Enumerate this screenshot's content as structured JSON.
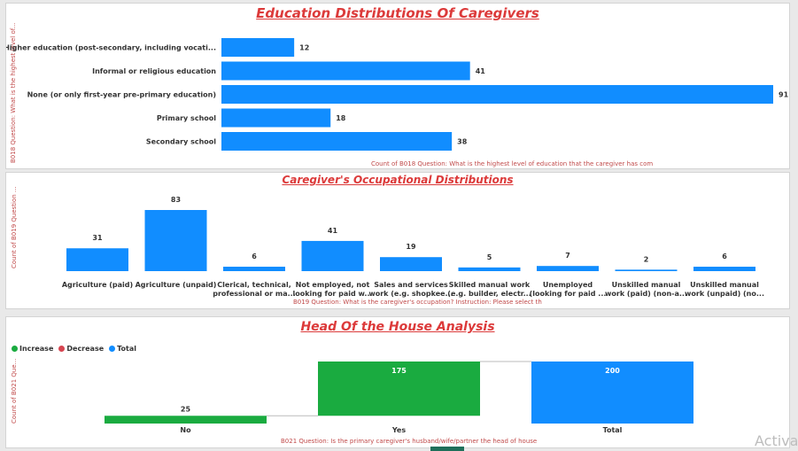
{
  "colors": {
    "bar": "#118dff",
    "increase": "#1aab40",
    "decrease": "#d64550",
    "total": "#118dff",
    "title": "#dc3a3a",
    "axis_title": "#c14b4b"
  },
  "watermark": "Activa",
  "chart_data": [
    {
      "type": "bar",
      "orientation": "horizontal",
      "title": "Education Distributions Of Caregivers",
      "ylabel": "B018 Question: What is the highest level of...",
      "xlabel": "Count of B018 Question: What is the highest level of education that the caregiver has com",
      "categories": [
        "Higher education (post-secondary, including vocati...",
        "Informal or religious education",
        "None (or only first-year pre-primary education)",
        "Primary school",
        "Secondary school"
      ],
      "values": [
        12,
        41,
        91,
        18,
        38
      ],
      "xlim": [
        0,
        91
      ],
      "grid": false
    },
    {
      "type": "bar",
      "title": "Caregiver's Occupational Distributions",
      "ylabel": "Count of B019 Question ...",
      "xlabel": "B019 Question: What is the caregiver's occupation? Instruction: Please select th",
      "categories": [
        [
          "Agriculture (paid)"
        ],
        [
          "Agriculture (unpaid)"
        ],
        [
          "Clerical, technical,",
          "professional or ma..."
        ],
        [
          "Not employed, not",
          "looking for paid w..."
        ],
        [
          "Sales and services",
          "work (e.g. shopkee..."
        ],
        [
          "Skilled manual work",
          "(e.g. builder, electr..."
        ],
        [
          "Unemployed",
          "(looking for paid ..."
        ],
        [
          "Unskilled manual",
          "work (paid) (non-a..."
        ],
        [
          "Unskilled manual",
          "work (unpaid) (no..."
        ]
      ],
      "values": [
        31,
        83,
        6,
        41,
        19,
        5,
        7,
        2,
        6
      ],
      "ylim": [
        0,
        83
      ],
      "grid": false
    },
    {
      "type": "waterfall",
      "title": "Head Of the House Analysis",
      "ylabel": "Count of B021 Que...",
      "xlabel": "B021 Question: Is the primary caregiver's husband/wife/partner the head of house",
      "legend": [
        {
          "name": "Increase",
          "color": "#1aab40"
        },
        {
          "name": "Decrease",
          "color": "#d64550"
        },
        {
          "name": "Total",
          "color": "#118dff"
        }
      ],
      "legend_position": "top-left",
      "categories": [
        "No",
        "Yes",
        "Total"
      ],
      "values": [
        25,
        175,
        200
      ],
      "kinds": [
        "increase",
        "increase",
        "total"
      ],
      "ylim": [
        0,
        200
      ],
      "grid": false
    }
  ]
}
